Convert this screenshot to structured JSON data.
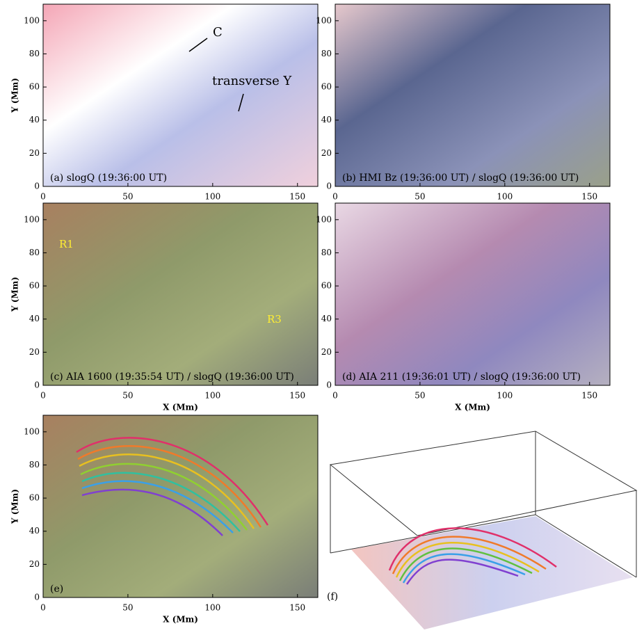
{
  "panels": [
    {
      "label": "(a) slogQ (19:36:00 UT)",
      "ylabel": "Y (Mm)",
      "xticks": [
        0,
        50,
        100,
        150
      ],
      "yticks": [
        0,
        20,
        40,
        60,
        80,
        100
      ],
      "xlim": [
        0,
        162
      ],
      "ylim": [
        0,
        110
      ]
    },
    {
      "label": "(b) HMI Bz (19:36:00 UT) / slogQ (19:36:00 UT)",
      "xticks": [
        0,
        50,
        100,
        150
      ],
      "yticks": [
        0,
        20,
        40,
        60,
        80,
        100
      ],
      "xlim": [
        0,
        162
      ],
      "ylim": [
        0,
        110
      ]
    },
    {
      "label": "(c) AIA 1600 (19:35:54 UT) / slogQ (19:36:00 UT)",
      "ylabel": "Y (Mm)",
      "xlabel": "X (Mm)",
      "xticks": [
        0,
        50,
        100,
        150
      ],
      "yticks": [
        0,
        20,
        40,
        60,
        80,
        100
      ],
      "xlim": [
        0,
        162
      ],
      "ylim": [
        0,
        110
      ]
    },
    {
      "label": "(d) AIA 211 (19:36:01 UT) / slogQ (19:36:00 UT)",
      "xlabel": "X (Mm)",
      "xticks": [
        0,
        50,
        100,
        150
      ],
      "yticks": [
        0,
        20,
        40,
        60,
        80,
        100
      ],
      "xlim": [
        0,
        162
      ],
      "ylim": [
        0,
        110
      ]
    },
    {
      "label": "(e)",
      "ylabel": "Y (Mm)",
      "xlabel": "X (Mm)",
      "xticks": [
        0,
        50,
        100,
        150
      ],
      "yticks": [
        0,
        20,
        40,
        60,
        80,
        100
      ],
      "xlim": [
        0,
        162
      ],
      "ylim": [
        0,
        110
      ]
    },
    {
      "label": "(f)"
    }
  ],
  "annotations": {
    "c": "C",
    "transverse_y": "transverse Y",
    "r1": "R1",
    "r3": "R3"
  }
}
